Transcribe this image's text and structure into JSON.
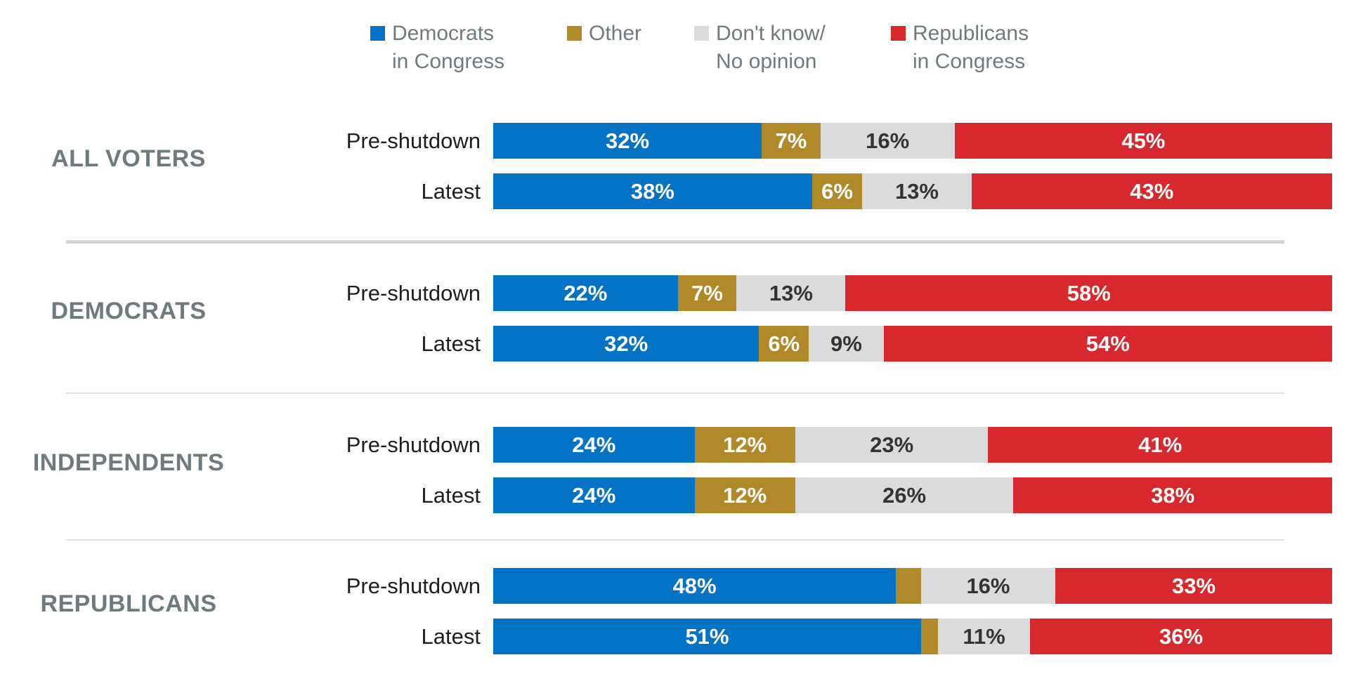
{
  "colors": {
    "democrats_blue": "#0573C5",
    "other_gold": "#B18929",
    "dont_know_gray": "#D9DBDC",
    "republicans_red": "#D7282E",
    "group_label_gray": "#6E7A7E",
    "row_label_dark": "#1E1E1E",
    "divider_thick_gray": "#D2D5D7",
    "divider_thin_gray": "#E0E0E0",
    "background": "#FFFFFF"
  },
  "chart_data": {
    "type": "bar",
    "orientation": "horizontal",
    "stacked": true,
    "value_unit": "%",
    "legend_position": "top",
    "grid": false,
    "axis_labels_shown": false,
    "series": [
      {
        "name": "Democrats in Congress",
        "legend_lines": [
          "Democrats",
          "in Congress"
        ],
        "color": "#0573C5",
        "label_color": "#FFFFFF"
      },
      {
        "name": "Other",
        "legend_lines": [
          "Other"
        ],
        "color": "#B18929",
        "label_color": "#FFFFFF"
      },
      {
        "name": "Don't know/No opinion",
        "legend_lines": [
          "Don't know/",
          "No opinion"
        ],
        "color": "#D9DBDC",
        "label_color": "#333333"
      },
      {
        "name": "Republicans in Congress",
        "legend_lines": [
          "Republicans",
          "in Congress"
        ],
        "color": "#D7282E",
        "label_color": "#FFFFFF"
      }
    ],
    "groups": [
      {
        "label": "ALL VOTERS",
        "rows": [
          {
            "label": "Pre-shutdown",
            "values": [
              32,
              7,
              16,
              45
            ],
            "labels": [
              "32%",
              "7%",
              "16%",
              "45%"
            ]
          },
          {
            "label": "Latest",
            "values": [
              38,
              6,
              13,
              43
            ],
            "labels": [
              "38%",
              "6%",
              "13%",
              "43%"
            ]
          }
        ]
      },
      {
        "label": "DEMOCRATS",
        "rows": [
          {
            "label": "Pre-shutdown",
            "values": [
              22,
              7,
              13,
              58
            ],
            "labels": [
              "22%",
              "7%",
              "13%",
              "58%"
            ]
          },
          {
            "label": "Latest",
            "values": [
              32,
              6,
              9,
              54
            ],
            "labels": [
              "32%",
              "6%",
              "9%",
              "54%"
            ]
          }
        ]
      },
      {
        "label": "INDEPENDENTS",
        "rows": [
          {
            "label": "Pre-shutdown",
            "values": [
              24,
              12,
              23,
              41
            ],
            "labels": [
              "24%",
              "12%",
              "23%",
              "41%"
            ]
          },
          {
            "label": "Latest",
            "values": [
              24,
              12,
              26,
              38
            ],
            "labels": [
              "24%",
              "12%",
              "26%",
              "38%"
            ]
          }
        ]
      },
      {
        "label": "REPUBLICANS",
        "rows": [
          {
            "label": "Pre-shutdown",
            "values": [
              48,
              3,
              16,
              33
            ],
            "labels": [
              "48%",
              "",
              "16%",
              "33%"
            ]
          },
          {
            "label": "Latest",
            "values": [
              51,
              2,
              11,
              36
            ],
            "labels": [
              "51%",
              "",
              "11%",
              "36%"
            ]
          }
        ]
      }
    ]
  }
}
